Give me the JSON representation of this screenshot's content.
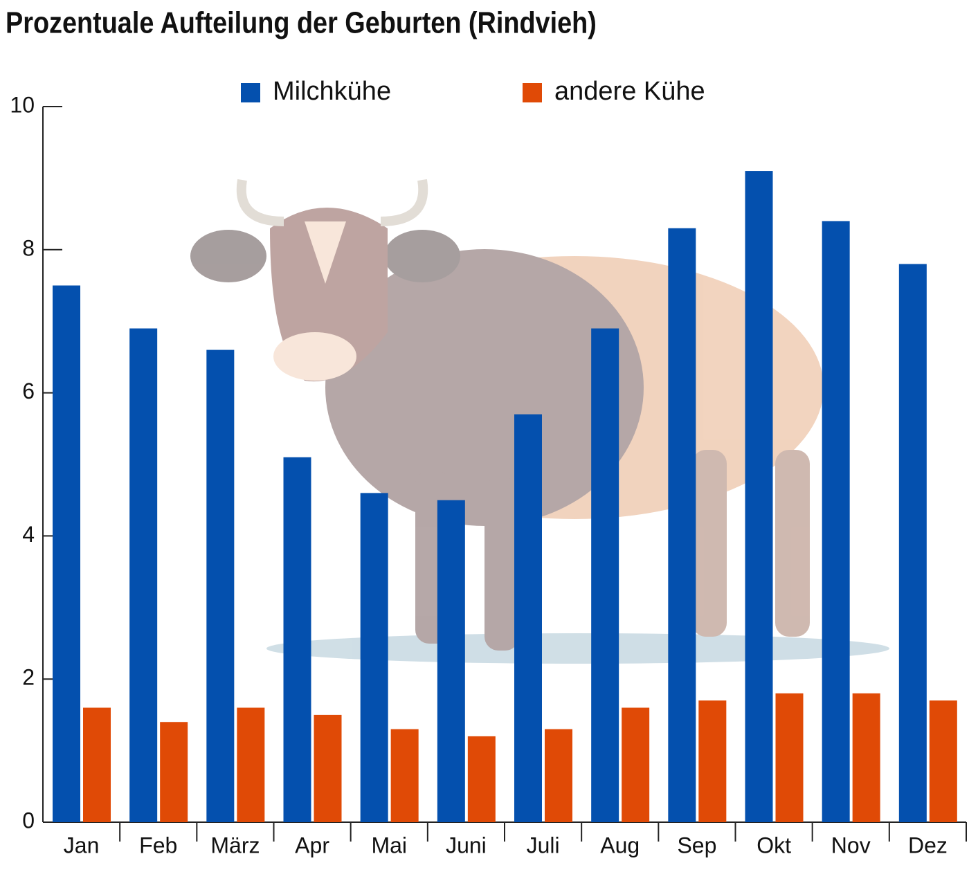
{
  "chart_data": {
    "type": "bar",
    "title": "Prozentuale Aufteilung der Geburten (Rindvieh)",
    "categories": [
      "Jan",
      "Feb",
      "März",
      "Apr",
      "Mai",
      "Juni",
      "Juli",
      "Aug",
      "Sep",
      "Okt",
      "Nov",
      "Dez"
    ],
    "series": [
      {
        "name": "Milchkühe",
        "color": "#0450ae",
        "values": [
          7.5,
          6.9,
          6.6,
          5.1,
          4.6,
          4.5,
          5.7,
          6.9,
          8.3,
          9.1,
          8.4,
          7.8
        ]
      },
      {
        "name": "andere Kühe",
        "color": "#e04a06",
        "values": [
          1.6,
          1.4,
          1.6,
          1.5,
          1.3,
          1.2,
          1.3,
          1.6,
          1.7,
          1.8,
          1.8,
          1.7
        ]
      }
    ],
    "ylim": [
      0,
      10
    ],
    "yticks": [
      0,
      2,
      4,
      6,
      8,
      10
    ]
  }
}
